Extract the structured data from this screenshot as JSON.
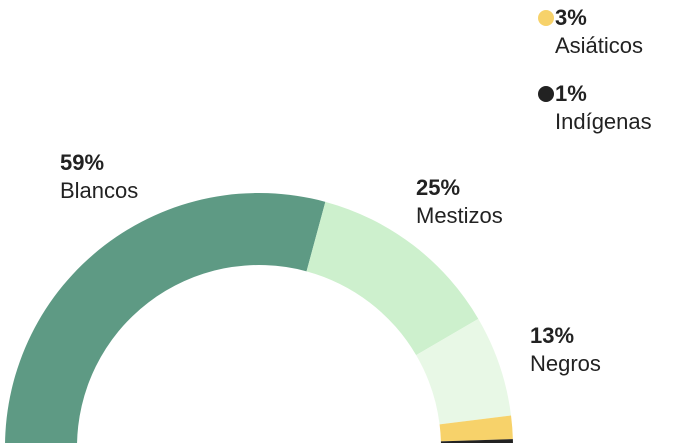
{
  "chart_data": {
    "type": "semidonut",
    "categories": [
      "Blancos",
      "Mestizos",
      "Negros",
      "Asiáticos",
      "Indígenas"
    ],
    "values": [
      59,
      25,
      13,
      3,
      1
    ],
    "value_labels": [
      "59%",
      "25%",
      "13%",
      "3%",
      "1%"
    ],
    "colors": [
      "#5e9a84",
      "#cdf0cd",
      "#e8f8e6",
      "#f7d26a",
      "#222222"
    ]
  }
}
